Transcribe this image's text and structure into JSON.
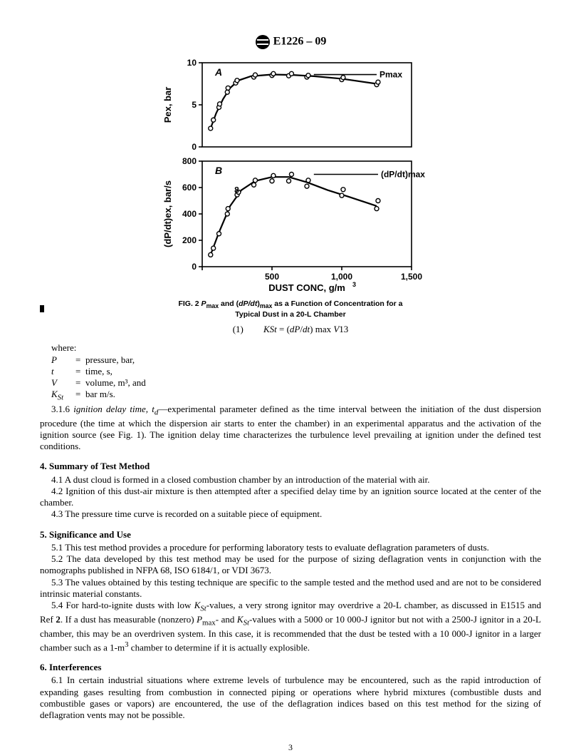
{
  "header": {
    "designation": "E1226 – 09"
  },
  "figure": {
    "caption_line1": "FIG. 2 Pmax and (dP/dt)max as a Function of Concentration for a",
    "caption_line2": "Typical Dust in a 20-L Chamber",
    "xlabel": "DUST CONC, g/m",
    "xlabel_exp": "3",
    "panelA": {
      "tag": "A",
      "ylabel": "Pex, bar",
      "annotation": "Pmax",
      "ylim": [
        0,
        10
      ],
      "yticks": [
        0,
        5,
        10
      ],
      "xlim": [
        0,
        1500
      ],
      "points": [
        [
          60,
          2.2
        ],
        [
          80,
          3.2
        ],
        [
          120,
          4.7
        ],
        [
          125,
          5.1
        ],
        [
          180,
          6.5
        ],
        [
          185,
          7.0
        ],
        [
          240,
          7.6
        ],
        [
          250,
          7.9
        ],
        [
          370,
          8.3
        ],
        [
          380,
          8.55
        ],
        [
          500,
          8.5
        ],
        [
          510,
          8.7
        ],
        [
          620,
          8.45
        ],
        [
          640,
          8.7
        ],
        [
          750,
          8.3
        ],
        [
          760,
          8.5
        ],
        [
          1000,
          8.0
        ],
        [
          1010,
          8.25
        ],
        [
          1250,
          7.4
        ],
        [
          1260,
          7.7
        ]
      ],
      "curve": [
        [
          60,
          2.2
        ],
        [
          100,
          4.0
        ],
        [
          150,
          5.7
        ],
        [
          200,
          7.0
        ],
        [
          260,
          7.9
        ],
        [
          350,
          8.4
        ],
        [
          500,
          8.6
        ],
        [
          650,
          8.55
        ],
        [
          800,
          8.4
        ],
        [
          1000,
          8.1
        ],
        [
          1250,
          7.5
        ]
      ],
      "ann_line": {
        "x1": 800,
        "x2": 1250,
        "y": 8.6
      }
    },
    "panelB": {
      "tag": "B",
      "ylabel": "(dP/dt)ex, bar/s",
      "annotation": "(dP/dt)max",
      "ylim": [
        0,
        800
      ],
      "yticks": [
        0,
        200,
        400,
        600,
        800
      ],
      "xlim": [
        0,
        1500
      ],
      "points": [
        [
          60,
          90
        ],
        [
          80,
          140
        ],
        [
          120,
          250
        ],
        [
          180,
          400
        ],
        [
          185,
          440
        ],
        [
          250,
          545
        ],
        [
          260,
          565
        ],
        [
          370,
          620
        ],
        [
          380,
          655
        ],
        [
          500,
          650
        ],
        [
          510,
          690
        ],
        [
          620,
          650
        ],
        [
          640,
          700
        ],
        [
          750,
          610
        ],
        [
          760,
          655
        ],
        [
          1000,
          540
        ],
        [
          1010,
          585
        ],
        [
          1250,
          440
        ],
        [
          1260,
          500
        ]
      ],
      "curve": [
        [
          60,
          90
        ],
        [
          120,
          260
        ],
        [
          200,
          460
        ],
        [
          280,
          580
        ],
        [
          380,
          650
        ],
        [
          500,
          680
        ],
        [
          620,
          680
        ],
        [
          750,
          640
        ],
        [
          900,
          580
        ],
        [
          1050,
          530
        ],
        [
          1250,
          460
        ]
      ],
      "ann_line": {
        "x1": 800,
        "x2": 1260,
        "y": 700
      },
      "stray_point": [
        230,
        560
      ]
    },
    "xticks": [
      0,
      500,
      1000,
      1500
    ],
    "xticklabels": [
      "",
      "500",
      "1,000",
      "1,500"
    ]
  },
  "equation": {
    "num": "(1)",
    "body": "KSt = (dP/dt) max V13"
  },
  "where": {
    "label": "where:",
    "rows": [
      {
        "sym": "P",
        "def": "pressure, bar,"
      },
      {
        "sym": "t",
        "def": "time, s,"
      },
      {
        "sym": "V",
        "def": "volume, m³, and"
      },
      {
        "sym": "K",
        "sub": "St",
        "def": "bar m/s."
      }
    ]
  },
  "p316": "3.1.6 ignition delay time, t_d—experimental parameter defined as the time interval between the initiation of the dust dispersion procedure (the time at which the dispersion air starts to enter the chamber) in an experimental apparatus and the activation of the ignition source (see Fig. 1). The ignition delay time characterizes the turbulence level prevailing at ignition under the defined test conditions.",
  "sec4": {
    "title": "4. Summary of Test Method",
    "p41": "4.1 A dust cloud is formed in a closed combustion chamber by an introduction of the material with air.",
    "p42": "4.2 Ignition of this dust-air mixture is then attempted after a specified delay time by an ignition source located at the center of the chamber.",
    "p43": "4.3 The pressure time curve is recorded on a suitable piece of equipment."
  },
  "sec5": {
    "title": "5. Significance and Use",
    "p51": "5.1 This test method provides a procedure for performing laboratory tests to evaluate deflagration parameters of dusts.",
    "p52": "5.2 The data developed by this test method may be used for the purpose of sizing deflagration vents in conjunction with the nomographs published in NFPA 68, ISO 6184/1, or VDI 3673.",
    "p53": "5.3 The values obtained by this testing technique are specific to the sample tested and the method used and are not to be considered intrinsic material constants.",
    "p54": "5.4 For hard-to-ignite dusts with low K_St-values, a very strong ignitor may overdrive a 20-L chamber, as discussed in E1515 and Ref 2. If a dust has measurable (nonzero) P_max- and K_St-values with a 5000 or 10 000-J ignitor but not with a 2500-J ignitor in a 20-L chamber, this may be an overdriven system. In this case, it is recommended that the dust be tested with a 10 000-J ignitor in a larger chamber such as a 1-m³ chamber to determine if it is actually explosible."
  },
  "sec6": {
    "title": "6. Interferences",
    "p61": "6.1 In certain industrial situations where extreme levels of turbulence may be encountered, such as the rapid introduction of expanding gases resulting from combustion in connected piping or operations where hybrid mixtures (combustible dusts and combustible gases or vapors) are encountered, the use of the deflagration indices based on this test method for the sizing of deflagration vents may not be possible."
  },
  "pagenum": "3",
  "style": {
    "stroke": "#000000",
    "stroke_width": 1.6,
    "marker_r": 3.0,
    "font": "Arial, Helvetica, sans-serif"
  }
}
